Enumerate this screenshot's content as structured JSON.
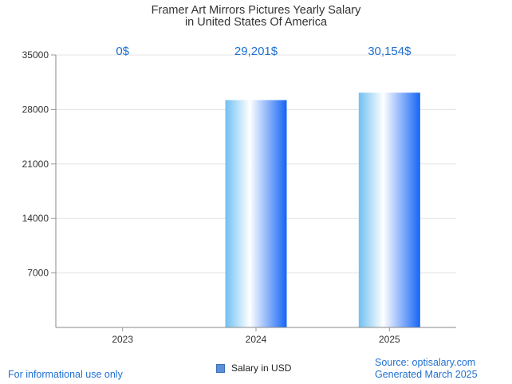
{
  "chart_data": {
    "type": "bar",
    "title": "Framer Art Mirrors Pictures Yearly Salary",
    "subtitle": "in United States Of America",
    "categories": [
      "2023",
      "2024",
      "2025"
    ],
    "series": [
      {
        "name": "Salary in USD",
        "values": [
          0,
          29201,
          30154
        ]
      }
    ],
    "data_labels": [
      "0$",
      "29,201$",
      "30,154$"
    ],
    "ylim": [
      0,
      35000
    ],
    "yticks": [
      7000,
      14000,
      21000,
      28000,
      35000
    ],
    "grid": true,
    "legend": "bottom-center",
    "colors": {
      "bar_dark": "#1565f5",
      "bar_light": "#ffffff",
      "bar_mid": "#7cc4f5",
      "label": "#1f6fd1"
    }
  },
  "footer": {
    "disclaimer": "For informational use only",
    "source": "Source: optisalary.com",
    "generated": "Generated March 2025"
  }
}
